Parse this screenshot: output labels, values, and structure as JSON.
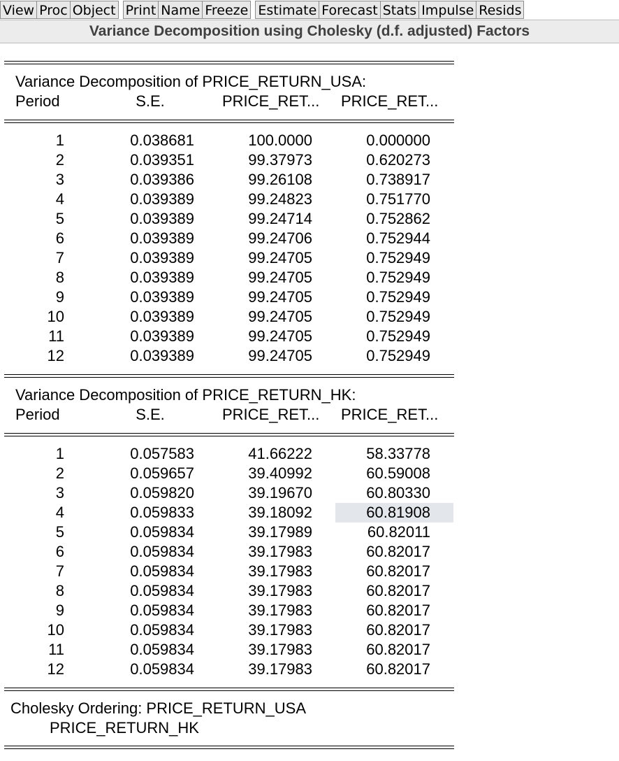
{
  "toolbar": {
    "buttons": [
      "View",
      "Proc",
      "Object",
      "Print",
      "Name",
      "Freeze",
      "Estimate",
      "Forecast",
      "Stats",
      "Impulse",
      "Resids"
    ]
  },
  "window_title": "Variance Decomposition using Cholesky (d.f. adjusted) Factors",
  "columns": {
    "period": "Period",
    "se": "S.E.",
    "price1": "PRICE_RET...",
    "price2": "PRICE_RET..."
  },
  "section_usa": {
    "title": "Variance Decomposition of PRICE_RETURN_USA:",
    "rows": [
      [
        "1",
        "0.038681",
        "100.0000",
        "0.000000"
      ],
      [
        "2",
        "0.039351",
        "99.37973",
        "0.620273"
      ],
      [
        "3",
        "0.039386",
        "99.26108",
        "0.738917"
      ],
      [
        "4",
        "0.039389",
        "99.24823",
        "0.751770"
      ],
      [
        "5",
        "0.039389",
        "99.24714",
        "0.752862"
      ],
      [
        "6",
        "0.039389",
        "99.24706",
        "0.752944"
      ],
      [
        "7",
        "0.039389",
        "99.24705",
        "0.752949"
      ],
      [
        "8",
        "0.039389",
        "99.24705",
        "0.752949"
      ],
      [
        "9",
        "0.039389",
        "99.24705",
        "0.752949"
      ],
      [
        "10",
        "0.039389",
        "99.24705",
        "0.752949"
      ],
      [
        "11",
        "0.039389",
        "99.24705",
        "0.752949"
      ],
      [
        "12",
        "0.039389",
        "99.24705",
        "0.752949"
      ]
    ]
  },
  "section_hk": {
    "title": "Variance Decomposition of PRICE_RETURN_HK:",
    "rows": [
      [
        "1",
        "0.057583",
        "41.66222",
        "58.33778"
      ],
      [
        "2",
        "0.059657",
        "39.40992",
        "60.59008"
      ],
      [
        "3",
        "0.059820",
        "39.19670",
        "60.80330"
      ],
      [
        "4",
        "0.059833",
        "39.18092",
        "60.81908"
      ],
      [
        "5",
        "0.059834",
        "39.17989",
        "60.82011"
      ],
      [
        "6",
        "0.059834",
        "39.17983",
        "60.82017"
      ],
      [
        "7",
        "0.059834",
        "39.17983",
        "60.82017"
      ],
      [
        "8",
        "0.059834",
        "39.17983",
        "60.82017"
      ],
      [
        "9",
        "0.059834",
        "39.17983",
        "60.82017"
      ],
      [
        "10",
        "0.059834",
        "39.17983",
        "60.82017"
      ],
      [
        "11",
        "0.059834",
        "39.17983",
        "60.82017"
      ],
      [
        "12",
        "0.059834",
        "39.17983",
        "60.82017"
      ]
    ]
  },
  "footer": {
    "line1": "Cholesky Ordering:  PRICE_RETURN_USA",
    "line2": "PRICE_RETURN_HK"
  }
}
